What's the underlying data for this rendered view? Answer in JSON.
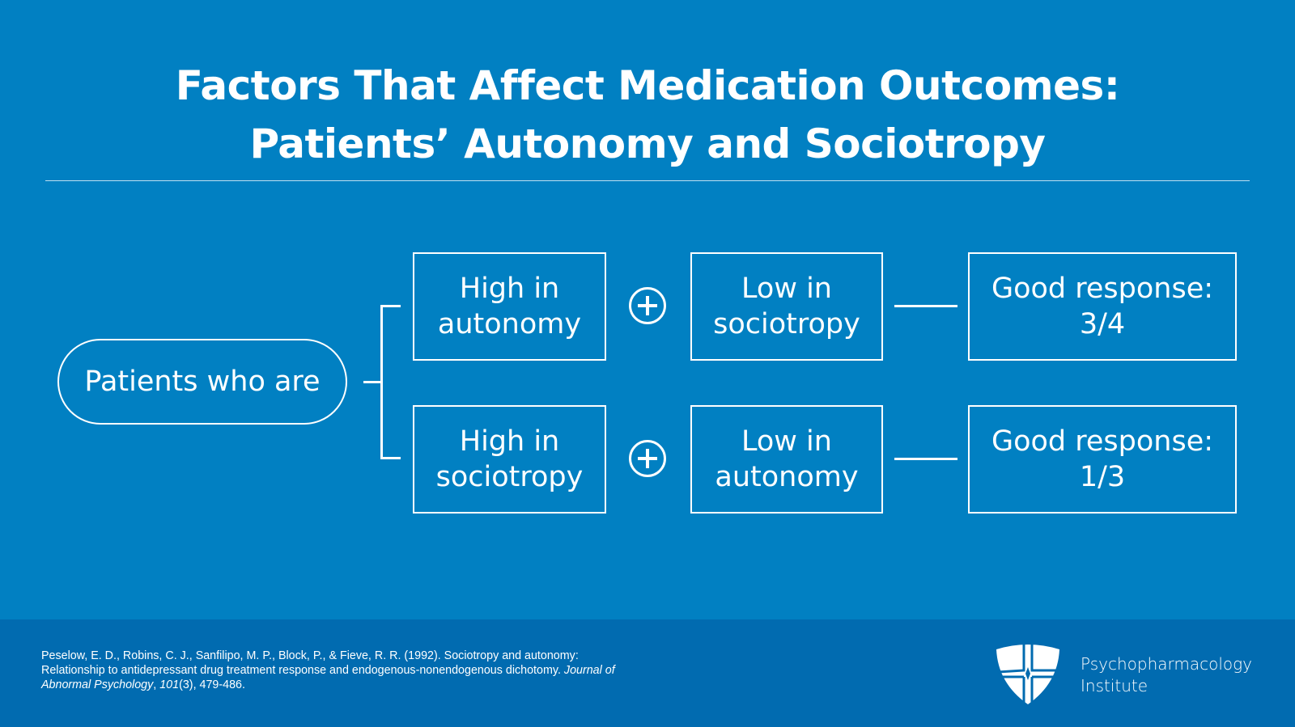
{
  "title": {
    "line1": "Factors That Affect Medication Outcomes:",
    "line2": "Patients’ Autonomy and Sociotropy"
  },
  "diagram": {
    "root": "Patients who are",
    "rows": [
      {
        "first": "High in\nautonomy",
        "second": "Low in\nsociotropy",
        "result": "Good response:\n3/4"
      },
      {
        "first": "High in\nsociotropy",
        "second": "Low in\nautonomy",
        "result": "Good response:\n1/3"
      }
    ],
    "operator_icon": "plus-circle-icon"
  },
  "footer": {
    "ref_main": "Peselow, E. D., Robins, C. J., Sanfilipo, M. P., Block, P., & Fieve, R. R. (1992). Sociotropy and autonomy: Relationship to antidepressant drug treatment response and endogenous-nonendogenous dichotomy. ",
    "ref_journal": "Journal of Abnormal Psychology",
    "ref_sep": ", ",
    "ref_volume": "101",
    "ref_tail": "(3), 479-486.",
    "logo_line1": "Psychopharmacology",
    "logo_line2": "Institute"
  },
  "colors": {
    "background": "#0180c2",
    "footer": "#016bb0"
  }
}
